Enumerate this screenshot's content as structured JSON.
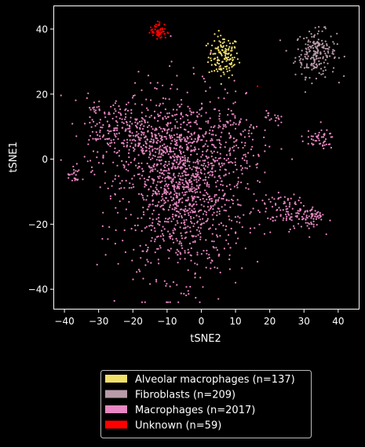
{
  "chart_data": {
    "type": "scatter",
    "title": "",
    "xlabel": "tSNE2",
    "ylabel": "tSNE1",
    "xlim": [
      -43,
      46
    ],
    "ylim": [
      -46,
      47
    ],
    "xticks": [
      -40,
      -30,
      -20,
      -10,
      0,
      10,
      20,
      30,
      40
    ],
    "yticks": [
      -40,
      -20,
      0,
      20,
      40
    ],
    "grid": false,
    "legend_placement": "below",
    "background": "#000000",
    "series": [
      {
        "name": "Alveolar macrophages (n=137)",
        "color": "#f0e06a",
        "count": 137,
        "clusters": [
          {
            "cx": 6.5,
            "cy": 31.5,
            "sx": 2.2,
            "sy": 3.2,
            "n": 137
          }
        ]
      },
      {
        "name": "Fibroblasts (n=209)",
        "color": "#b89aa8",
        "count": 209,
        "clusters": [
          {
            "cx": 33.5,
            "cy": 32.5,
            "sx": 3.0,
            "sy": 3.5,
            "n": 209
          }
        ]
      },
      {
        "name": "Macrophages (n=2017)",
        "color": "#e887c2",
        "count": 2017,
        "clusters": [
          {
            "cx": -5,
            "cy": -8,
            "sx": 9.0,
            "sy": 14.0,
            "n": 1270
          },
          {
            "cx": -22,
            "cy": 8,
            "sx": 6.0,
            "sy": 5.5,
            "n": 250
          },
          {
            "cx": -10,
            "cy": 2,
            "sx": 7.0,
            "sy": 8.0,
            "n": 170
          },
          {
            "cx": 25,
            "cy": -16,
            "sx": 4.0,
            "sy": 2.5,
            "n": 95
          },
          {
            "cx": 32,
            "cy": -18,
            "sx": 2.0,
            "sy": 2.0,
            "n": 55
          },
          {
            "cx": 10,
            "cy": 6,
            "sx": 5.0,
            "sy": 6.0,
            "n": 75
          },
          {
            "cx": 34,
            "cy": 6,
            "sx": 2.5,
            "sy": 1.5,
            "n": 50
          },
          {
            "cx": -37,
            "cy": -5,
            "sx": 1.0,
            "sy": 1.5,
            "n": 22
          },
          {
            "cx": -31,
            "cy": 16,
            "sx": 1.0,
            "sy": 2.0,
            "n": 15
          },
          {
            "cx": 21,
            "cy": 13,
            "sx": 1.0,
            "sy": 1.0,
            "n": 15
          }
        ]
      },
      {
        "name": "Unknown (n=59)",
        "color": "#ff0000",
        "count": 59,
        "clusters": [
          {
            "cx": -12.5,
            "cy": 39.5,
            "sx": 1.2,
            "sy": 1.3,
            "n": 57
          },
          {
            "cx": 16.5,
            "cy": 22.5,
            "sx": 0.1,
            "sy": 0.1,
            "n": 1
          },
          {
            "cx": -9.5,
            "cy": 38.8,
            "sx": 0.1,
            "sy": 0.1,
            "n": 1
          }
        ]
      }
    ]
  }
}
